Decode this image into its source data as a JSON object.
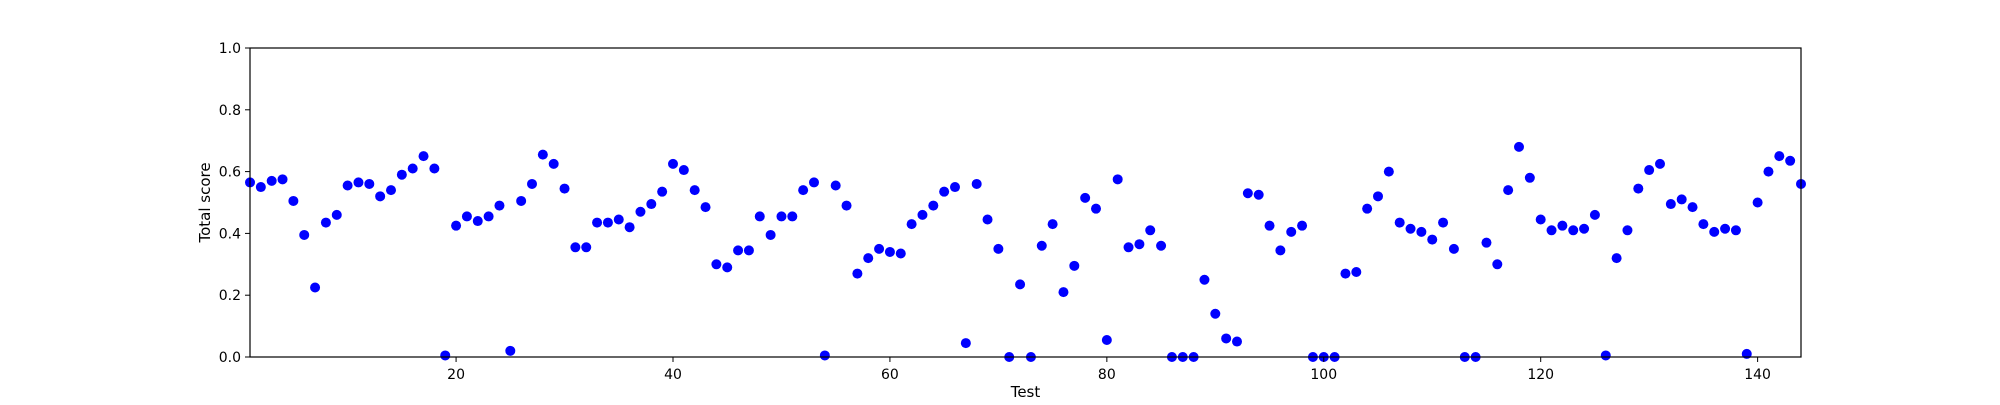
{
  "chart_data": {
    "type": "scatter",
    "title": "",
    "xlabel": "Test",
    "ylabel": "Total score",
    "xlim": [
      1,
      144
    ],
    "ylim": [
      0.0,
      1.0
    ],
    "x_ticks": [
      20,
      40,
      60,
      80,
      100,
      120,
      140
    ],
    "y_ticks": [
      0.0,
      0.2,
      0.4,
      0.6,
      0.8,
      1.0
    ],
    "x_tick_labels": [
      "20",
      "40",
      "60",
      "80",
      "100",
      "120",
      "140"
    ],
    "y_tick_labels": [
      "0.0",
      "0.2",
      "0.4",
      "0.6",
      "0.8",
      "1.0"
    ],
    "grid": false,
    "marker_color": "#0000ff",
    "series": [
      {
        "x": [
          1,
          2,
          3,
          4,
          5,
          6,
          7,
          8,
          9,
          10,
          11,
          12,
          13,
          14,
          15,
          16,
          17,
          18,
          19,
          20,
          21,
          22,
          23,
          24,
          25,
          26,
          27,
          28,
          29,
          30,
          31,
          32,
          33,
          34,
          35,
          36,
          37,
          38,
          39,
          40,
          41,
          42,
          43,
          44,
          45,
          46,
          47,
          48,
          49,
          50,
          51,
          52,
          53,
          54,
          55,
          56,
          57,
          58,
          59,
          60,
          61,
          62,
          63,
          64,
          65,
          66,
          67,
          68,
          69,
          70,
          71,
          72,
          73,
          74,
          75,
          76,
          77,
          78,
          79,
          80,
          81,
          82,
          83,
          84,
          85,
          86,
          87,
          88,
          89,
          90,
          91,
          92,
          93,
          94,
          95,
          96,
          97,
          98,
          99,
          100,
          101,
          102,
          103,
          104,
          105,
          106,
          107,
          108,
          109,
          110,
          111,
          112,
          113,
          114,
          115,
          116,
          117,
          118,
          119,
          120,
          121,
          122,
          123,
          124,
          125,
          126,
          127,
          128,
          129,
          130,
          131,
          132,
          133,
          134,
          135,
          136,
          137,
          138,
          139,
          140,
          141,
          142,
          143,
          144
        ],
        "y": [
          0.565,
          0.55,
          0.57,
          0.575,
          0.505,
          0.395,
          0.225,
          0.435,
          0.46,
          0.555,
          0.565,
          0.56,
          0.52,
          0.54,
          0.59,
          0.61,
          0.65,
          0.61,
          0.005,
          0.425,
          0.455,
          0.44,
          0.455,
          0.49,
          0.02,
          0.505,
          0.56,
          0.655,
          0.625,
          0.545,
          0.355,
          0.355,
          0.435,
          0.435,
          0.445,
          0.42,
          0.47,
          0.495,
          0.535,
          0.625,
          0.605,
          0.54,
          0.485,
          0.3,
          0.29,
          0.345,
          0.345,
          0.455,
          0.395,
          0.455,
          0.455,
          0.54,
          0.565,
          0.005,
          0.555,
          0.49,
          0.27,
          0.32,
          0.35,
          0.34,
          0.335,
          0.43,
          0.46,
          0.49,
          0.535,
          0.55,
          0.045,
          0.56,
          0.445,
          0.35,
          0.0,
          0.235,
          0.0,
          0.36,
          0.43,
          0.21,
          0.295,
          0.515,
          0.48,
          0.055,
          0.575,
          0.355,
          0.365,
          0.41,
          0.36,
          0.0,
          0.0,
          0.0,
          0.25,
          0.14,
          0.06,
          0.05,
          0.53,
          0.525,
          0.425,
          0.345,
          0.405,
          0.425,
          0.0,
          0.0,
          0.0,
          0.27,
          0.275,
          0.48,
          0.52,
          0.6,
          0.435,
          0.415,
          0.405,
          0.38,
          0.435,
          0.35,
          0.0,
          0.0,
          0.37,
          0.3,
          0.54,
          0.68,
          0.58,
          0.445,
          0.41,
          0.425,
          0.41,
          0.415,
          0.46,
          0.005,
          0.32,
          0.41,
          0.545,
          0.605,
          0.625,
          0.495,
          0.51,
          0.485,
          0.43,
          0.405,
          0.415,
          0.41,
          0.01,
          0.5,
          0.6,
          0.65,
          0.635,
          0.56
        ]
      }
    ]
  }
}
